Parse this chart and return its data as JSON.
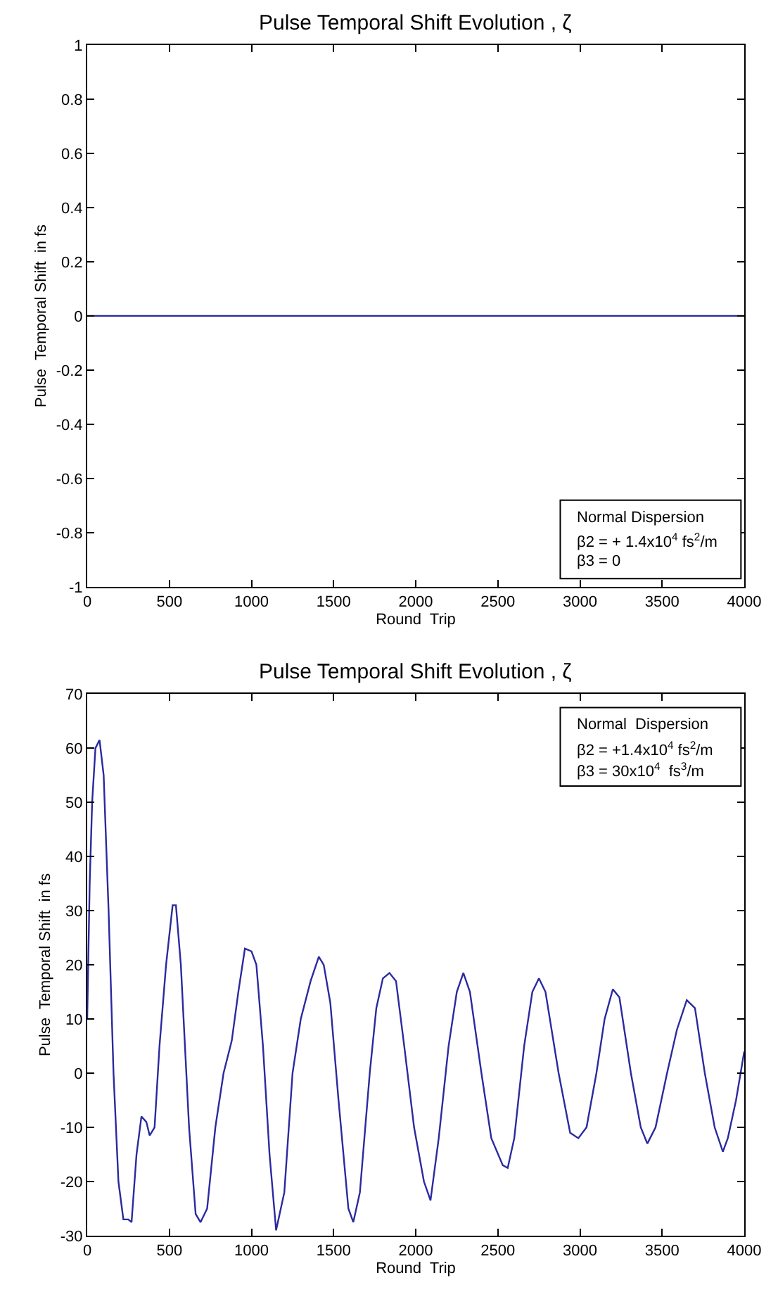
{
  "chart_data": [
    {
      "type": "line",
      "title": "Pulse Temporal Shift Evolution , ζ",
      "xlabel": "Round  Trip",
      "ylabel": "Pulse  Temporal Shift  in fs",
      "x": [
        0,
        4000
      ],
      "series": [
        {
          "color": "#2a2aa0",
          "values": [
            0,
            0
          ]
        }
      ],
      "xlim": [
        0,
        4000
      ],
      "xticks": [
        0,
        500,
        1000,
        1500,
        2000,
        2500,
        3000,
        3500,
        4000
      ],
      "ylim": [
        -1,
        1
      ],
      "yticks": [
        -1,
        -0.8,
        -0.6,
        -0.4,
        -0.2,
        0,
        0.2,
        0.4,
        0.6,
        0.8,
        1
      ],
      "annotations": [
        "Normal Dispersion",
        "β2 = + 1.4x10$^{4}$ fs$^{2}$/m",
        "β3 = 0"
      ]
    },
    {
      "type": "line",
      "title": "Pulse Temporal Shift Evolution , ζ",
      "xlabel": "Round  Trip",
      "ylabel": "Pulse  Temporal Shift  in fs",
      "x": [
        0,
        15,
        30,
        50,
        75,
        100,
        130,
        160,
        190,
        220,
        250,
        270,
        300,
        330,
        360,
        380,
        410,
        440,
        480,
        520,
        540,
        570,
        620,
        660,
        690,
        730,
        780,
        830,
        880,
        920,
        960,
        1000,
        1030,
        1070,
        1110,
        1150,
        1200,
        1250,
        1300,
        1360,
        1410,
        1440,
        1480,
        1530,
        1590,
        1620,
        1660,
        1720,
        1760,
        1800,
        1840,
        1880,
        1930,
        1990,
        2050,
        2090,
        2140,
        2200,
        2250,
        2290,
        2330,
        2400,
        2460,
        2530,
        2560,
        2600,
        2660,
        2710,
        2750,
        2790,
        2870,
        2940,
        2990,
        3040,
        3100,
        3150,
        3200,
        3240,
        3310,
        3370,
        3410,
        3460,
        3530,
        3590,
        3650,
        3700,
        3760,
        3820,
        3870,
        3900,
        3950,
        4000
      ],
      "series": [
        {
          "color": "#2a2aa0",
          "values": [
            10,
            35,
            50,
            60,
            61.5,
            55,
            30,
            0,
            -20,
            -27,
            -27,
            -27.5,
            -15,
            -8,
            -9,
            -11.5,
            -10,
            5,
            20,
            31,
            31,
            20,
            -10,
            -26,
            -27.5,
            -25,
            -10,
            0,
            6,
            15,
            23,
            22.5,
            20,
            5,
            -15,
            -29,
            -22,
            0,
            10,
            17,
            21.5,
            20,
            13,
            -5,
            -25,
            -27.5,
            -22,
            0,
            12,
            17.5,
            18.5,
            17,
            5,
            -10,
            -20,
            -23.5,
            -12,
            5,
            15,
            18.5,
            15,
            0,
            -12,
            -17,
            -17.5,
            -12,
            5,
            15,
            17.5,
            15,
            0,
            -11,
            -12,
            -10,
            0,
            10,
            15.5,
            14,
            0,
            -10,
            -13,
            -10,
            0,
            8,
            13.5,
            12,
            0,
            -10,
            -14.5,
            -12,
            -5,
            4
          ]
        }
      ],
      "xlim": [
        0,
        4000
      ],
      "xticks": [
        0,
        500,
        1000,
        1500,
        2000,
        2500,
        3000,
        3500,
        4000
      ],
      "ylim": [
        -30,
        70
      ],
      "yticks": [
        -30,
        -20,
        -10,
        0,
        10,
        20,
        30,
        40,
        50,
        60,
        70
      ],
      "annotations": [
        "Normal  Dispersion",
        "β2 = +1.4x10$^{4}$ fs$^{2}$/m",
        "β3 = 30x10$^{4}$  fs$^{3}$/m"
      ]
    }
  ]
}
